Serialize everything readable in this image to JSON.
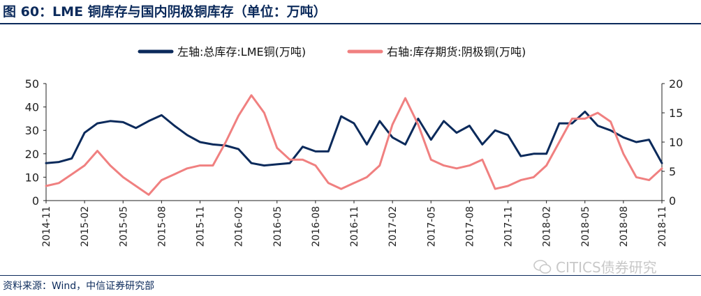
{
  "header": {
    "title": "图 60：LME 铜库存与国内阴极铜库存（单位：万吨）"
  },
  "footer": {
    "source": "资料来源：Wind，中信证券研究部",
    "watermark": "CITICS债券研究"
  },
  "colors": {
    "left_series": "#0b2a5b",
    "right_series": "#f08080",
    "title": "#0b2a5b"
  },
  "icons": {
    "watermark_icon": "wechat-icon"
  },
  "chart_data": {
    "type": "line",
    "title": "",
    "legend_position": "top",
    "grid": false,
    "xlabel": "",
    "ylabel": "",
    "y_left_lim": [
      0,
      50
    ],
    "y_left_ticks": [
      "0",
      "10",
      "20",
      "30",
      "40",
      "50"
    ],
    "y_right_lim": [
      0,
      20
    ],
    "y_right_ticks": [
      "0",
      "5",
      "10",
      "15",
      "20"
    ],
    "x_tick_labels": [
      "2014-11",
      "2015-02",
      "2015-05",
      "2015-08",
      "2015-11",
      "2016-02",
      "2016-05",
      "2016-08",
      "2016-11",
      "2017-02",
      "2017-05",
      "2017-08",
      "2017-11",
      "2018-02",
      "2018-05",
      "2018-08",
      "2018-11"
    ],
    "series": [
      {
        "name": "左轴:总库存:LME铜(万吨)",
        "axis": "left",
        "color": "#0b2a5b",
        "x": [
          "2014-11",
          "2014-12",
          "2015-01",
          "2015-02",
          "2015-03",
          "2015-04",
          "2015-05",
          "2015-06",
          "2015-07",
          "2015-08",
          "2015-09",
          "2015-10",
          "2015-11",
          "2015-12",
          "2016-01",
          "2016-02",
          "2016-03",
          "2016-04",
          "2016-05",
          "2016-06",
          "2016-07",
          "2016-08",
          "2016-09",
          "2016-10",
          "2016-11",
          "2016-12",
          "2017-01",
          "2017-02",
          "2017-03",
          "2017-04",
          "2017-05",
          "2017-06",
          "2017-07",
          "2017-08",
          "2017-09",
          "2017-10",
          "2017-11",
          "2017-12",
          "2018-01",
          "2018-02",
          "2018-03",
          "2018-04",
          "2018-05",
          "2018-06",
          "2018-07",
          "2018-08",
          "2018-09",
          "2018-10",
          "2018-11"
        ],
        "values": [
          16,
          16.5,
          18,
          29,
          33,
          34,
          33.5,
          31,
          34,
          36.5,
          32,
          28,
          25,
          24,
          23.5,
          22,
          16,
          15,
          15.5,
          16,
          23,
          21,
          21,
          36,
          33,
          24,
          34,
          27,
          24,
          35,
          26,
          34,
          29,
          32,
          24,
          30,
          28,
          19,
          20,
          20,
          33,
          33,
          38,
          32,
          30,
          27,
          25,
          26,
          16
        ]
      },
      {
        "name": "右轴:库存期货:阴极铜(万吨)",
        "axis": "right",
        "color": "#f08080",
        "x": [
          "2014-11",
          "2014-12",
          "2015-01",
          "2015-02",
          "2015-03",
          "2015-04",
          "2015-05",
          "2015-06",
          "2015-07",
          "2015-08",
          "2015-09",
          "2015-10",
          "2015-11",
          "2015-12",
          "2016-01",
          "2016-02",
          "2016-03",
          "2016-04",
          "2016-05",
          "2016-06",
          "2016-07",
          "2016-08",
          "2016-09",
          "2016-10",
          "2016-11",
          "2016-12",
          "2017-01",
          "2017-02",
          "2017-03",
          "2017-04",
          "2017-05",
          "2017-06",
          "2017-07",
          "2017-08",
          "2017-09",
          "2017-10",
          "2017-11",
          "2017-12",
          "2018-01",
          "2018-02",
          "2018-03",
          "2018-04",
          "2018-05",
          "2018-06",
          "2018-07",
          "2018-08",
          "2018-09",
          "2018-10",
          "2018-11"
        ],
        "values": [
          2.5,
          3,
          4.5,
          6,
          8.5,
          6,
          4,
          2.5,
          1,
          3.5,
          4.5,
          5.5,
          6,
          6,
          10,
          14.5,
          18,
          15,
          9,
          7,
          7,
          6,
          3,
          2,
          3,
          4,
          6,
          13,
          17.5,
          13,
          7,
          6,
          5.5,
          6,
          7,
          2,
          2.5,
          3.5,
          4,
          6,
          10,
          14,
          14,
          15,
          13.5,
          8,
          4,
          3.5,
          5.5
        ]
      }
    ]
  }
}
